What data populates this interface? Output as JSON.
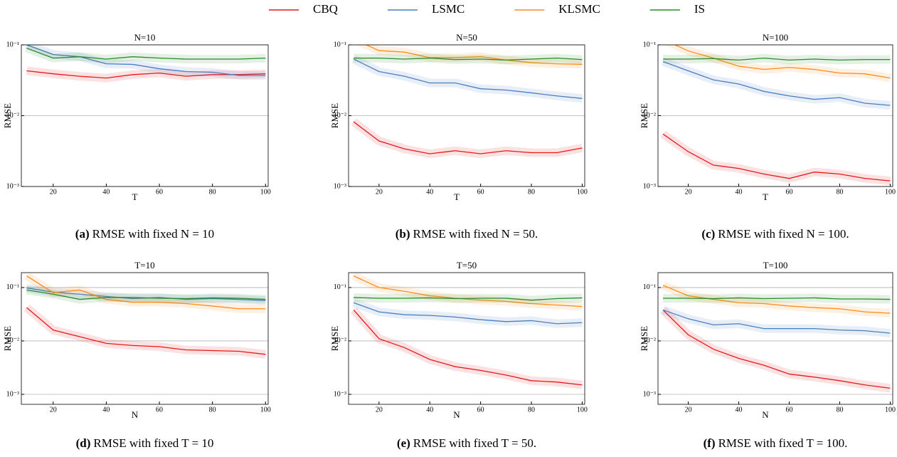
{
  "chart_data": [
    {
      "type": "line",
      "title": "N=10",
      "xlabel": "T",
      "ylabel": "RMSE",
      "x": [
        10,
        20,
        30,
        40,
        50,
        60,
        70,
        80,
        90,
        100
      ],
      "xlim": [
        8,
        101
      ],
      "xticks": [
        20,
        40,
        60,
        80,
        100
      ],
      "ylim": [
        0.001,
        0.1
      ],
      "log_y": true,
      "grid": true,
      "yticks": [
        {
          "value": 0.001,
          "label": "10⁻³"
        },
        {
          "value": 0.01,
          "label": "10⁻²"
        },
        {
          "value": 0.1,
          "label": "10⁻¹"
        }
      ],
      "series": [
        {
          "name": "CBQ",
          "color": "#e41a1c",
          "values": [
            0.043,
            0.039,
            0.036,
            0.034,
            0.038,
            0.04,
            0.036,
            0.038,
            0.038,
            0.039
          ]
        },
        {
          "name": "LSMC",
          "color": "#4a7fbf",
          "values": [
            0.1,
            0.073,
            0.068,
            0.054,
            0.053,
            0.046,
            0.042,
            0.041,
            0.037,
            0.037
          ]
        },
        {
          "name": "IS",
          "color": "#2a8a2a",
          "values": [
            0.09,
            0.065,
            0.068,
            0.063,
            0.068,
            0.065,
            0.063,
            0.063,
            0.063,
            0.065
          ]
        }
      ],
      "caption_label": "(a)",
      "caption": "RMSE with fixed N = 10"
    },
    {
      "type": "line",
      "title": "N=50",
      "xlabel": "T",
      "ylabel": "RMSE",
      "x": [
        10,
        20,
        30,
        40,
        50,
        60,
        70,
        80,
        90,
        100
      ],
      "xlim": [
        8,
        101
      ],
      "xticks": [
        20,
        40,
        60,
        80,
        100
      ],
      "ylim": [
        0.001,
        0.1
      ],
      "log_y": true,
      "grid": true,
      "yticks": [
        {
          "value": 0.001,
          "label": "10⁻³"
        },
        {
          "value": 0.01,
          "label": "10⁻²"
        },
        {
          "value": 0.1,
          "label": "10⁻¹"
        }
      ],
      "legend": "outside top",
      "series": [
        {
          "name": "CBQ",
          "color": "#e41a1c",
          "values": [
            0.0082,
            0.0044,
            0.0034,
            0.0029,
            0.0032,
            0.0029,
            0.0032,
            0.003,
            0.003,
            0.0035
          ]
        },
        {
          "name": "LSMC",
          "color": "#4a7fbf",
          "values": [
            0.063,
            0.042,
            0.036,
            0.029,
            0.029,
            0.024,
            0.023,
            0.021,
            0.019,
            0.0175
          ]
        },
        {
          "name": "KLSMC",
          "color": "#ff8c1a",
          "values": [
            0.12,
            0.083,
            0.079,
            0.066,
            0.066,
            0.068,
            0.061,
            0.056,
            0.054,
            0.053
          ]
        },
        {
          "name": "IS",
          "color": "#2a8a2a",
          "values": [
            0.065,
            0.065,
            0.063,
            0.065,
            0.062,
            0.063,
            0.061,
            0.063,
            0.065,
            0.062
          ]
        }
      ],
      "caption_label": "(b)",
      "caption": "RMSE with fixed N = 50."
    },
    {
      "type": "line",
      "title": "N=100",
      "xlabel": "T",
      "ylabel": "RMSE",
      "x": [
        10,
        20,
        30,
        40,
        50,
        60,
        70,
        80,
        90,
        100
      ],
      "xlim": [
        8,
        101
      ],
      "xticks": [
        20,
        40,
        60,
        80,
        100
      ],
      "ylim": [
        0.001,
        0.1
      ],
      "log_y": true,
      "grid": true,
      "yticks": [
        {
          "value": 0.001,
          "label": "10⁻³"
        },
        {
          "value": 0.01,
          "label": "10⁻²"
        },
        {
          "value": 0.1,
          "label": "10⁻¹"
        }
      ],
      "series": [
        {
          "name": "CBQ",
          "color": "#e41a1c",
          "values": [
            0.0055,
            0.0031,
            0.002,
            0.0018,
            0.0015,
            0.0013,
            0.0016,
            0.0015,
            0.0013,
            0.0012
          ]
        },
        {
          "name": "LSMC",
          "color": "#4a7fbf",
          "values": [
            0.058,
            0.043,
            0.032,
            0.028,
            0.022,
            0.019,
            0.017,
            0.018,
            0.015,
            0.014
          ]
        },
        {
          "name": "KLSMC",
          "color": "#ff8c1a",
          "values": [
            0.12,
            0.082,
            0.065,
            0.05,
            0.045,
            0.048,
            0.045,
            0.04,
            0.039,
            0.034
          ]
        },
        {
          "name": "IS",
          "color": "#2a8a2a",
          "values": [
            0.063,
            0.063,
            0.064,
            0.061,
            0.065,
            0.061,
            0.063,
            0.061,
            0.062,
            0.062
          ]
        }
      ],
      "caption_label": "(c)",
      "caption": "RMSE with fixed N = 100."
    },
    {
      "type": "line",
      "title": "T=10",
      "xlabel": "N",
      "ylabel": "RMSE",
      "x": [
        10,
        20,
        30,
        40,
        50,
        60,
        70,
        80,
        90,
        100
      ],
      "xlim": [
        8,
        101
      ],
      "xticks": [
        20,
        40,
        60,
        80,
        100
      ],
      "ylim": [
        0.00065,
        0.19
      ],
      "log_y": true,
      "grid": true,
      "yticks": [
        {
          "value": 0.001,
          "label": "10⁻³"
        },
        {
          "value": 0.01,
          "label": "10⁻²"
        },
        {
          "value": 0.1,
          "label": "10⁻¹"
        }
      ],
      "series": [
        {
          "name": "CBQ",
          "color": "#e41a1c",
          "values": [
            0.042,
            0.016,
            0.012,
            0.009,
            0.0082,
            0.0078,
            0.0068,
            0.0066,
            0.0064,
            0.0056
          ]
        },
        {
          "name": "LSMC",
          "color": "#4a7fbf",
          "values": [
            0.098,
            0.082,
            0.075,
            0.068,
            0.062,
            0.065,
            0.06,
            0.062,
            0.06,
            0.057
          ]
        },
        {
          "name": "KLSMC",
          "color": "#ff8c1a",
          "values": [
            0.165,
            0.08,
            0.09,
            0.06,
            0.053,
            0.053,
            0.05,
            0.045,
            0.04,
            0.04
          ]
        },
        {
          "name": "IS",
          "color": "#2a8a2a",
          "values": [
            0.09,
            0.075,
            0.06,
            0.065,
            0.065,
            0.063,
            0.062,
            0.064,
            0.063,
            0.06
          ]
        }
      ],
      "caption_label": "(d)",
      "caption": "RMSE with fixed T = 10"
    },
    {
      "type": "line",
      "title": "T=50",
      "xlabel": "N",
      "ylabel": "RMSE",
      "x": [
        10,
        20,
        30,
        40,
        50,
        60,
        70,
        80,
        90,
        100
      ],
      "xlim": [
        8,
        101
      ],
      "xticks": [
        20,
        40,
        60,
        80,
        100
      ],
      "ylim": [
        0.00065,
        0.19
      ],
      "log_y": true,
      "grid": true,
      "yticks": [
        {
          "value": 0.001,
          "label": "10⁻³"
        },
        {
          "value": 0.01,
          "label": "10⁻²"
        },
        {
          "value": 0.1,
          "label": "10⁻¹"
        }
      ],
      "series": [
        {
          "name": "CBQ",
          "color": "#e41a1c",
          "values": [
            0.038,
            0.011,
            0.0075,
            0.0045,
            0.0033,
            0.0028,
            0.0023,
            0.0018,
            0.0017,
            0.0015
          ]
        },
        {
          "name": "LSMC",
          "color": "#4a7fbf",
          "values": [
            0.052,
            0.035,
            0.031,
            0.03,
            0.028,
            0.025,
            0.023,
            0.024,
            0.021,
            0.022
          ]
        },
        {
          "name": "KLSMC",
          "color": "#ff8c1a",
          "values": [
            0.165,
            0.1,
            0.085,
            0.07,
            0.063,
            0.058,
            0.055,
            0.05,
            0.047,
            0.044
          ]
        },
        {
          "name": "IS",
          "color": "#2a8a2a",
          "values": [
            0.065,
            0.063,
            0.063,
            0.064,
            0.062,
            0.063,
            0.063,
            0.058,
            0.062,
            0.064
          ]
        }
      ],
      "caption_label": "(e)",
      "caption": "RMSE with fixed T = 50."
    },
    {
      "type": "line",
      "title": "T=100",
      "xlabel": "N",
      "ylabel": "RMSE",
      "x": [
        10,
        20,
        30,
        40,
        50,
        60,
        70,
        80,
        90,
        100
      ],
      "xlim": [
        8,
        101
      ],
      "xticks": [
        20,
        40,
        60,
        80,
        100
      ],
      "ylim": [
        0.00065,
        0.19
      ],
      "log_y": true,
      "grid": true,
      "yticks": [
        {
          "value": 0.001,
          "label": "10⁻³"
        },
        {
          "value": 0.01,
          "label": "10⁻²"
        },
        {
          "value": 0.1,
          "label": "10⁻¹"
        }
      ],
      "series": [
        {
          "name": "CBQ",
          "color": "#e41a1c",
          "values": [
            0.038,
            0.013,
            0.007,
            0.0047,
            0.0035,
            0.0024,
            0.0021,
            0.0018,
            0.0015,
            0.0013
          ]
        },
        {
          "name": "LSMC",
          "color": "#4a7fbf",
          "values": [
            0.038,
            0.026,
            0.02,
            0.021,
            0.017,
            0.017,
            0.017,
            0.016,
            0.0155,
            0.014
          ]
        },
        {
          "name": "KLSMC",
          "color": "#ff8c1a",
          "values": [
            0.11,
            0.07,
            0.06,
            0.052,
            0.05,
            0.045,
            0.042,
            0.04,
            0.035,
            0.033
          ]
        },
        {
          "name": "IS",
          "color": "#2a8a2a",
          "values": [
            0.063,
            0.063,
            0.062,
            0.064,
            0.062,
            0.063,
            0.064,
            0.061,
            0.061,
            0.06
          ]
        }
      ],
      "caption_label": "(f)",
      "caption": "RMSE with fixed T = 100."
    }
  ]
}
